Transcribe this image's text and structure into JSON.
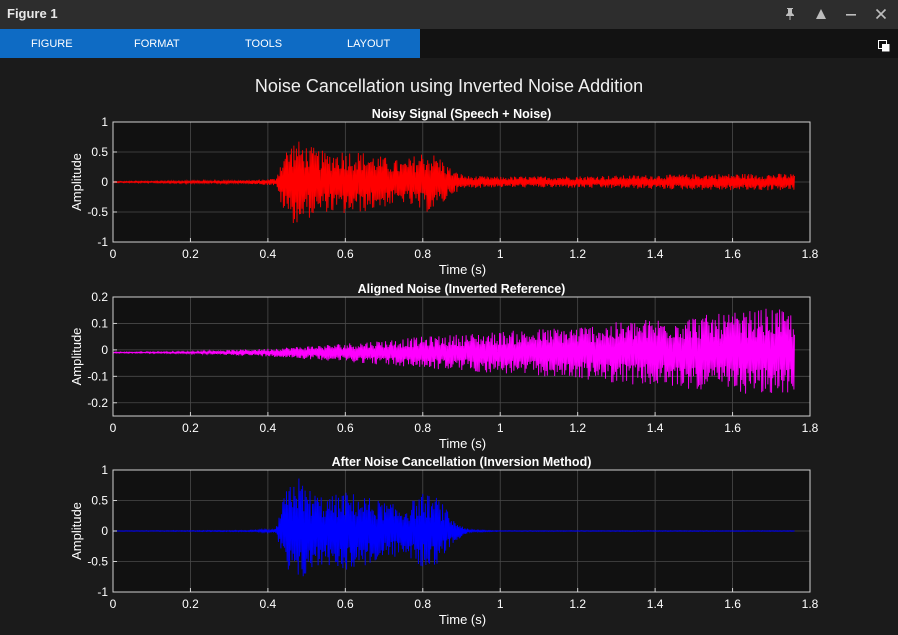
{
  "window": {
    "title": "Figure 1"
  },
  "toolstrip": {
    "tabs": [
      "FIGURE",
      "FORMAT",
      "TOOLS",
      "LAYOUT"
    ]
  },
  "figure": {
    "suptitle": "Noise Cancellation using Inverted Noise Addition"
  },
  "chart_data": [
    {
      "type": "line",
      "title": "Noisy Signal (Speech + Noise)",
      "xlabel": "Time (s)",
      "ylabel": "Amplitude",
      "xlim": [
        0,
        1.8
      ],
      "ylim": [
        -1,
        1
      ],
      "xticks": [
        "0",
        "0.2",
        "0.4",
        "0.6",
        "0.8",
        "1",
        "1.2",
        "1.4",
        "1.6",
        "1.8"
      ],
      "yticks": [
        "-1",
        "-0.5",
        "0",
        "0.5",
        "1"
      ],
      "grid": true,
      "color": "#ff0000",
      "series": [
        {
          "x": [
            0,
            0.35,
            0.42,
            0.44,
            0.47,
            0.5,
            0.55,
            0.6,
            0.65,
            0.7,
            0.75,
            0.8,
            0.84,
            0.88,
            0.92,
            1.0,
            1.2,
            1.4,
            1.6,
            1.76
          ],
          "envelope": [
            0.01,
            0.03,
            0.06,
            0.5,
            0.72,
            0.62,
            0.5,
            0.55,
            0.5,
            0.42,
            0.35,
            0.52,
            0.45,
            0.18,
            0.1,
            0.09,
            0.1,
            0.12,
            0.14,
            0.14
          ]
        }
      ]
    },
    {
      "type": "line",
      "title": "Aligned Noise (Inverted Reference)",
      "xlabel": "Time (s)",
      "ylabel": "Amplitude",
      "xlim": [
        0,
        1.8
      ],
      "ylim": [
        -0.25,
        0.2
      ],
      "xticks": [
        "0",
        "0.2",
        "0.4",
        "0.6",
        "0.8",
        "1",
        "1.2",
        "1.4",
        "1.6",
        "1.8"
      ],
      "yticks": [
        "-0.2",
        "-0.1",
        "0",
        "0.1",
        "0.2"
      ],
      "grid": true,
      "color": "#ff00ff",
      "series": [
        {
          "x": [
            0,
            0.2,
            0.3,
            0.4,
            0.5,
            0.6,
            0.8,
            1.0,
            1.2,
            1.4,
            1.6,
            1.7,
            1.76
          ],
          "envelope": [
            0.002,
            0.004,
            0.01,
            0.015,
            0.025,
            0.035,
            0.06,
            0.08,
            0.1,
            0.13,
            0.15,
            0.17,
            0.15
          ]
        }
      ]
    },
    {
      "type": "line",
      "title": "After Noise Cancellation (Inversion Method)",
      "xlabel": "Time (s)",
      "ylabel": "Amplitude",
      "xlim": [
        0,
        1.8
      ],
      "ylim": [
        -1,
        1
      ],
      "xticks": [
        "0",
        "0.2",
        "0.4",
        "0.6",
        "0.8",
        "1",
        "1.2",
        "1.4",
        "1.6",
        "1.8"
      ],
      "yticks": [
        "-1",
        "-0.5",
        "0",
        "0.5",
        "1"
      ],
      "grid": true,
      "color": "#0000ff",
      "series": [
        {
          "x": [
            0,
            0.35,
            0.42,
            0.44,
            0.47,
            0.5,
            0.55,
            0.6,
            0.65,
            0.7,
            0.75,
            0.8,
            0.84,
            0.88,
            0.92,
            1.0,
            1.4,
            1.76
          ],
          "envelope": [
            0.003,
            0.01,
            0.03,
            0.55,
            0.98,
            0.72,
            0.55,
            0.65,
            0.58,
            0.48,
            0.4,
            0.62,
            0.55,
            0.18,
            0.02,
            0.005,
            0.005,
            0.005
          ]
        }
      ]
    }
  ]
}
